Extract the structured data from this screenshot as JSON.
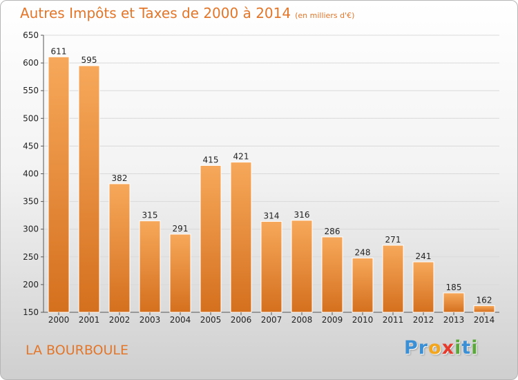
{
  "chart_data": {
    "type": "bar",
    "title": "Autres Impôts et Taxes de 2000 à 2014",
    "subtitle": "(en milliers d'€)",
    "categories": [
      "2000",
      "2001",
      "2002",
      "2003",
      "2004",
      "2005",
      "2006",
      "2007",
      "2008",
      "2009",
      "2010",
      "2011",
      "2012",
      "2013",
      "2014"
    ],
    "values": [
      611,
      595,
      382,
      315,
      291,
      415,
      421,
      314,
      316,
      286,
      248,
      271,
      241,
      185,
      162
    ],
    "data_labels": [
      "611",
      "595",
      "382",
      "315",
      "291",
      "415",
      "421",
      "314",
      "316",
      "286",
      "248",
      "271",
      "241",
      "185",
      "162"
    ],
    "ylim": [
      150,
      650
    ],
    "yticks": [
      "150",
      "200",
      "250",
      "300",
      "350",
      "400",
      "450",
      "500",
      "550",
      "600",
      "650"
    ],
    "ytick_values": [
      150,
      200,
      250,
      300,
      350,
      400,
      450,
      500,
      550,
      600,
      650
    ],
    "grid": true,
    "xlabel": "",
    "ylabel": "",
    "colors": {
      "bar_light": "#f7a85a",
      "bar_dark": "#d4701e",
      "title": "#e2762a",
      "grid": "#d9d9d9"
    }
  },
  "footer": {
    "location": "LA BOURBOULE"
  },
  "brand": {
    "letters": [
      {
        "char": "P",
        "color": "#3b8fd4"
      },
      {
        "char": "r",
        "color": "#3b8fd4"
      },
      {
        "char": "o",
        "color": "#f2a51e"
      },
      {
        "char": "x",
        "color": "#e53b2c"
      },
      {
        "char": "i",
        "color": "#5aa83a"
      },
      {
        "char": "t",
        "color": "#3b8fd4"
      },
      {
        "char": "i",
        "color": "#5aa83a"
      }
    ]
  }
}
